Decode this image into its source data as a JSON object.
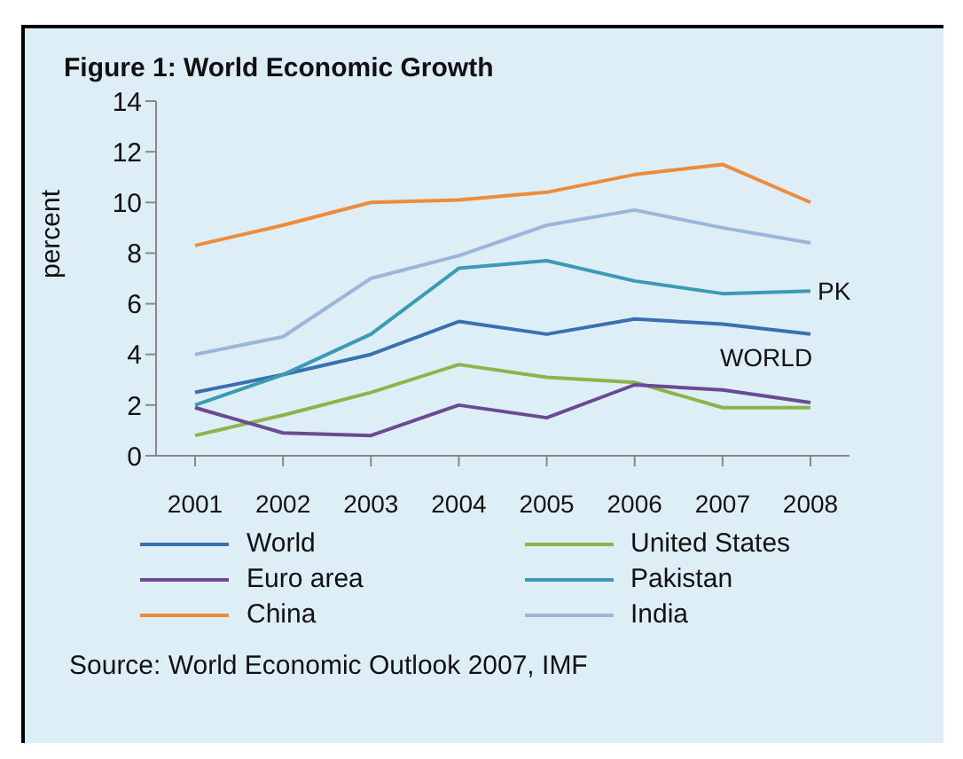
{
  "chart_data": {
    "type": "line",
    "title": "Figure 1: World Economic Growth",
    "ylabel": "percent",
    "categories": [
      "2001",
      "2002",
      "2003",
      "2004",
      "2005",
      "2006",
      "2007",
      "2008"
    ],
    "series": [
      {
        "name": "World",
        "color": "#3a6fb0",
        "values": [
          2.5,
          3.2,
          4.0,
          5.3,
          4.8,
          5.4,
          5.2,
          4.8
        ]
      },
      {
        "name": "United States",
        "color": "#8db34a",
        "values": [
          0.8,
          1.6,
          2.5,
          3.6,
          3.1,
          2.9,
          1.9,
          1.9
        ]
      },
      {
        "name": "Euro area",
        "color": "#6c4a93",
        "values": [
          1.9,
          0.9,
          0.8,
          2.0,
          1.5,
          2.8,
          2.6,
          2.1
        ]
      },
      {
        "name": "Pakistan",
        "color": "#3a9bb5",
        "values": [
          2.0,
          3.2,
          4.8,
          7.4,
          7.7,
          6.9,
          6.4,
          6.5
        ]
      },
      {
        "name": "China",
        "color": "#ee8b3a",
        "values": [
          8.3,
          9.1,
          10.0,
          10.1,
          10.4,
          11.1,
          11.5,
          10.0
        ]
      },
      {
        "name": "India",
        "color": "#9cb5da",
        "values": [
          4.0,
          4.7,
          7.0,
          7.9,
          9.1,
          9.7,
          9.0,
          8.4
        ]
      }
    ],
    "ylim": [
      0,
      14
    ],
    "yticks": [
      0,
      2,
      4,
      6,
      8,
      10,
      12,
      14
    ],
    "grid": false,
    "legend": "bottom",
    "marker": "none",
    "line_style": "solid",
    "annotations": [
      {
        "text": "PK",
        "x": "2008",
        "y": 6.5
      },
      {
        "text": "WORLD",
        "x": "2008",
        "y": 4.8
      },
      "Source: World Economic Outlook 2007, IMF"
    ]
  }
}
